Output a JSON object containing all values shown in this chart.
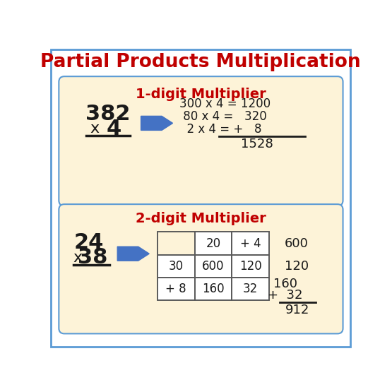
{
  "title": "Partial Products Multiplication",
  "title_color": "#c00000",
  "title_fontsize": 19,
  "bg_color": "#ffffff",
  "box_color": "#fdf3d8",
  "box_edge_color": "#5b9bd5",
  "arrow_color": "#4472c4",
  "section1_title": "1-digit Multiplier",
  "section1_title_color": "#c00000",
  "section2_title": "2-digit Multiplier",
  "section2_title_color": "#c00000",
  "text_color": "#1a1a1a",
  "table_edge_color": "#5a5a5a",
  "outer_border_color": "#5b9bd5"
}
